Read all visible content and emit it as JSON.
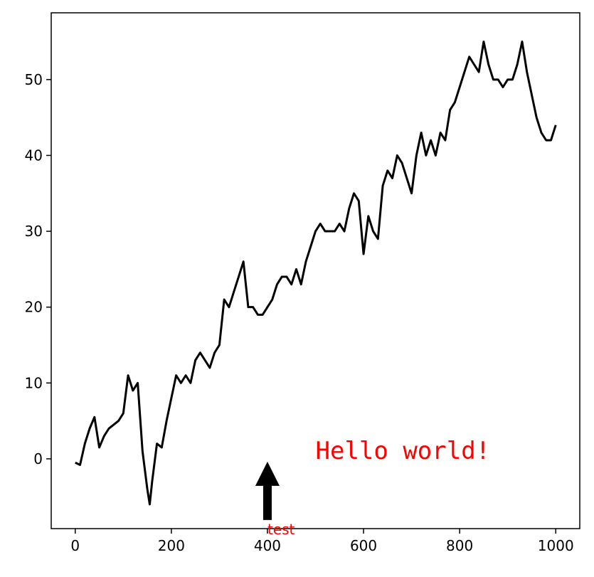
{
  "chart_data": {
    "type": "line",
    "x": [
      0,
      10,
      20,
      30,
      40,
      50,
      60,
      70,
      80,
      90,
      100,
      110,
      120,
      130,
      140,
      150,
      155,
      160,
      170,
      180,
      190,
      200,
      210,
      220,
      230,
      240,
      250,
      260,
      270,
      280,
      290,
      300,
      310,
      320,
      330,
      340,
      350,
      360,
      370,
      380,
      390,
      400,
      410,
      420,
      430,
      440,
      450,
      460,
      470,
      480,
      490,
      500,
      510,
      520,
      530,
      540,
      550,
      560,
      570,
      580,
      590,
      600,
      610,
      620,
      630,
      640,
      650,
      660,
      670,
      680,
      690,
      700,
      710,
      720,
      730,
      740,
      750,
      760,
      770,
      780,
      790,
      800,
      810,
      820,
      830,
      840,
      850,
      860,
      870,
      880,
      890,
      900,
      910,
      920,
      930,
      940,
      950,
      960,
      970,
      980,
      990,
      1000
    ],
    "values": [
      -0.5,
      -0.8,
      2,
      4,
      5.5,
      1.5,
      3,
      4,
      4.5,
      5,
      6,
      11,
      9,
      10,
      1,
      -4,
      -6,
      -3,
      2,
      1.5,
      5,
      8,
      11,
      10,
      11,
      10,
      13,
      14,
      13,
      12,
      14,
      15,
      21,
      20,
      22,
      24,
      26,
      20,
      20,
      19,
      19,
      20,
      21,
      23,
      24,
      24,
      23,
      25,
      23,
      26,
      28,
      30,
      31,
      30,
      30,
      30,
      31,
      30,
      33,
      35,
      34,
      27,
      32,
      30,
      29,
      36,
      38,
      37,
      40,
      39,
      37,
      35,
      40,
      43,
      40,
      42,
      40,
      43,
      42,
      46,
      47,
      49,
      51,
      53,
      52,
      51,
      55,
      52,
      50,
      50,
      49,
      50,
      50,
      52,
      55,
      51,
      48,
      45,
      43,
      42,
      42,
      44
    ],
    "color": "#000000",
    "xlim": [
      -50,
      1050
    ],
    "ylim": [
      -9.2,
      58.8
    ],
    "xticks": [
      0,
      200,
      400,
      600,
      800,
      1000
    ],
    "yticks": [
      0,
      10,
      20,
      30,
      40,
      50
    ],
    "annotations": [
      {
        "text": "Hello world!",
        "x": 500,
        "y": 0,
        "color": "#ff0000"
      },
      {
        "text": "test",
        "xy": [
          400,
          0
        ],
        "xytext": [
          400,
          -9
        ],
        "color": "#ff0000"
      }
    ]
  }
}
